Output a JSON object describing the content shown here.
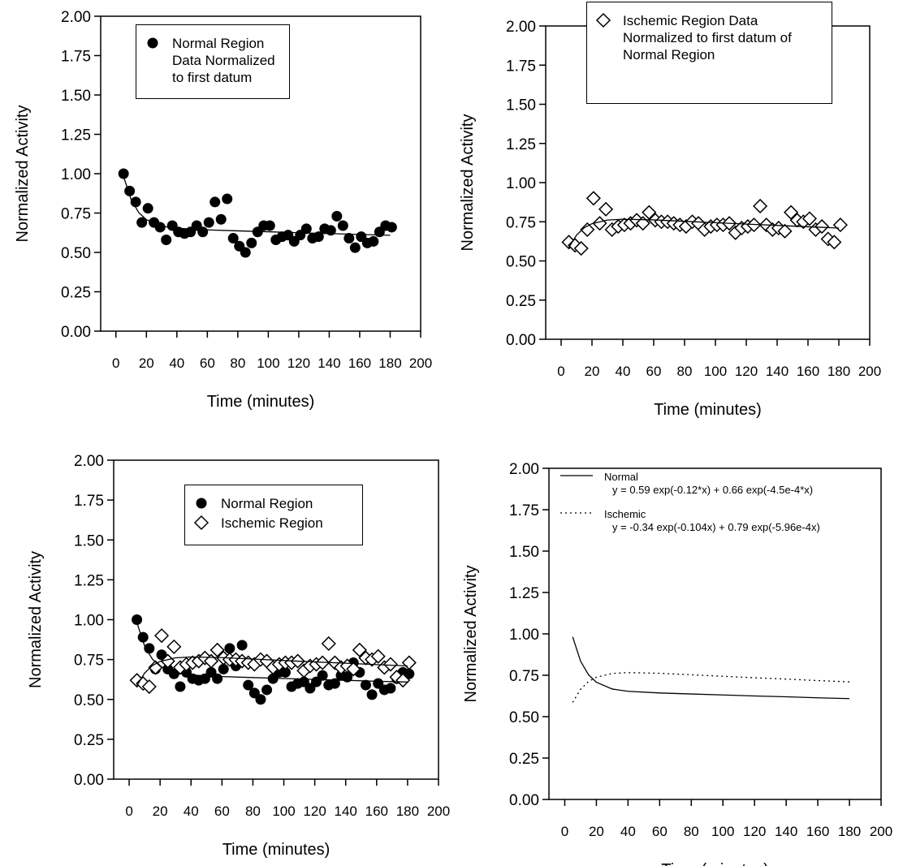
{
  "chart_data": [
    {
      "type": "scatter",
      "x_label": "Time (minutes)",
      "y_label": "Normalized Activity",
      "xlim": [
        -10,
        200
      ],
      "ylim": [
        0,
        2
      ],
      "xticks": [
        0,
        20,
        40,
        60,
        80,
        100,
        120,
        140,
        160,
        180,
        200
      ],
      "yticks": [
        {
          "value": 0,
          "label": "0.00"
        },
        {
          "value": 0.25,
          "label": "0.25"
        },
        {
          "value": 0.5,
          "label": "0.50"
        },
        {
          "value": 0.75,
          "label": "0.75"
        },
        {
          "value": 1,
          "label": "1.00"
        },
        {
          "value": 1.25,
          "label": "1.25"
        },
        {
          "value": 1.5,
          "label": "1.50"
        },
        {
          "value": 1.75,
          "label": "1.75"
        },
        {
          "value": 2,
          "label": "2.00"
        }
      ],
      "legend_frame": true,
      "series": [
        {
          "name": "Normal Region Data Normalized to first datum",
          "mode": "markers",
          "marker": "circle",
          "color": "#000000",
          "x": [
            5,
            9,
            13,
            17,
            21,
            25,
            29,
            33,
            37,
            41,
            45,
            49,
            53,
            57,
            61,
            65,
            69,
            73,
            77,
            81,
            85,
            89,
            93,
            97,
            101,
            105,
            109,
            113,
            117,
            121,
            125,
            129,
            133,
            137,
            141,
            145,
            149,
            153,
            157,
            161,
            165,
            169,
            173,
            177,
            181
          ],
          "values": [
            1.0,
            0.89,
            0.82,
            0.69,
            0.78,
            0.69,
            0.66,
            0.58,
            0.67,
            0.63,
            0.62,
            0.63,
            0.67,
            0.63,
            0.69,
            0.82,
            0.71,
            0.84,
            0.59,
            0.54,
            0.5,
            0.56,
            0.63,
            0.67,
            0.67,
            0.58,
            0.6,
            0.61,
            0.57,
            0.61,
            0.65,
            0.59,
            0.6,
            0.65,
            0.64,
            0.73,
            0.67,
            0.59,
            0.53,
            0.6,
            0.56,
            0.57,
            0.63,
            0.67,
            0.66
          ]
        },
        {
          "mode": "line",
          "dash": "solid",
          "color": "#000000",
          "x": [
            5,
            10,
            15,
            20,
            30,
            40,
            60,
            80,
            100,
            120,
            140,
            160,
            180
          ],
          "values": [
            0.982,
            0.835,
            0.753,
            0.708,
            0.667,
            0.653,
            0.643,
            0.637,
            0.631,
            0.625,
            0.62,
            0.614,
            0.609
          ]
        }
      ]
    },
    {
      "type": "scatter",
      "x_label": "Time (minutes)",
      "y_label": "Normalized Activity",
      "xlim": [
        -10,
        200
      ],
      "ylim": [
        0,
        2
      ],
      "xticks": [
        0,
        20,
        40,
        60,
        80,
        100,
        120,
        140,
        160,
        180,
        200
      ],
      "yticks": [
        {
          "value": 0,
          "label": "0.00"
        },
        {
          "value": 0.25,
          "label": "0.25"
        },
        {
          "value": 0.5,
          "label": "0.50"
        },
        {
          "value": 0.75,
          "label": "0.75"
        },
        {
          "value": 1,
          "label": "1.00"
        },
        {
          "value": 1.25,
          "label": "1.25"
        },
        {
          "value": 1.5,
          "label": "1.50"
        },
        {
          "value": 1.75,
          "label": "1.75"
        },
        {
          "value": 2,
          "label": "2.00"
        }
      ],
      "legend_frame": true,
      "series": [
        {
          "name": "Ischemic Region Data Normalized to first datum of Normal Region",
          "mode": "markers",
          "marker": "diamond",
          "color": "#000000",
          "x": [
            5,
            9,
            13,
            17,
            21,
            25,
            29,
            33,
            37,
            41,
            45,
            49,
            53,
            57,
            61,
            65,
            69,
            73,
            77,
            81,
            85,
            89,
            93,
            97,
            101,
            105,
            109,
            113,
            117,
            121,
            125,
            129,
            133,
            137,
            141,
            145,
            149,
            153,
            157,
            161,
            165,
            169,
            173,
            177,
            181
          ],
          "values": [
            0.62,
            0.6,
            0.58,
            0.7,
            0.9,
            0.74,
            0.83,
            0.7,
            0.72,
            0.73,
            0.74,
            0.76,
            0.74,
            0.81,
            0.76,
            0.75,
            0.75,
            0.74,
            0.73,
            0.72,
            0.75,
            0.74,
            0.7,
            0.72,
            0.73,
            0.73,
            0.74,
            0.68,
            0.71,
            0.72,
            0.73,
            0.85,
            0.73,
            0.7,
            0.71,
            0.69,
            0.81,
            0.76,
            0.75,
            0.77,
            0.7,
            0.72,
            0.64,
            0.62,
            0.73
          ]
        },
        {
          "mode": "line",
          "dash": "solid",
          "color": "#000000",
          "x": [
            5,
            10,
            15,
            20,
            30,
            40,
            60,
            80,
            100,
            120,
            140,
            160,
            180
          ],
          "values": [
            0.586,
            0.665,
            0.712,
            0.738,
            0.761,
            0.766,
            0.762,
            0.753,
            0.744,
            0.735,
            0.727,
            0.718,
            0.71
          ]
        }
      ]
    },
    {
      "type": "scatter",
      "x_label": "Time (minutes)",
      "y_label": "Normalized Activity",
      "xlim": [
        -10,
        200
      ],
      "ylim": [
        0,
        2
      ],
      "xticks": [
        0,
        20,
        40,
        60,
        80,
        100,
        120,
        140,
        160,
        180,
        200
      ],
      "yticks": [
        {
          "value": 0,
          "label": "0.00"
        },
        {
          "value": 0.25,
          "label": "0.25"
        },
        {
          "value": 0.5,
          "label": "0.50"
        },
        {
          "value": 0.75,
          "label": "0.75"
        },
        {
          "value": 1,
          "label": "1.00"
        },
        {
          "value": 1.25,
          "label": "1.25"
        },
        {
          "value": 1.5,
          "label": "1.50"
        },
        {
          "value": 1.75,
          "label": "1.75"
        },
        {
          "value": 2,
          "label": "2.00"
        }
      ],
      "legend_frame": true,
      "series": [
        {
          "name": "Normal Region",
          "mode": "markers",
          "marker": "circle",
          "color": "#000000",
          "x": [
            5,
            9,
            13,
            17,
            21,
            25,
            29,
            33,
            37,
            41,
            45,
            49,
            53,
            57,
            61,
            65,
            69,
            73,
            77,
            81,
            85,
            89,
            93,
            97,
            101,
            105,
            109,
            113,
            117,
            121,
            125,
            129,
            133,
            137,
            141,
            145,
            149,
            153,
            157,
            161,
            165,
            169,
            173,
            177,
            181
          ],
          "values": [
            1.0,
            0.89,
            0.82,
            0.69,
            0.78,
            0.69,
            0.66,
            0.58,
            0.67,
            0.63,
            0.62,
            0.63,
            0.67,
            0.63,
            0.69,
            0.82,
            0.71,
            0.84,
            0.59,
            0.54,
            0.5,
            0.56,
            0.63,
            0.67,
            0.67,
            0.58,
            0.6,
            0.61,
            0.57,
            0.61,
            0.65,
            0.59,
            0.6,
            0.65,
            0.64,
            0.73,
            0.67,
            0.59,
            0.53,
            0.6,
            0.56,
            0.57,
            0.63,
            0.67,
            0.66
          ]
        },
        {
          "name": "Ischemic Region",
          "mode": "markers",
          "marker": "diamond",
          "color": "#000000",
          "x": [
            5,
            9,
            13,
            17,
            21,
            25,
            29,
            33,
            37,
            41,
            45,
            49,
            53,
            57,
            61,
            65,
            69,
            73,
            77,
            81,
            85,
            89,
            93,
            97,
            101,
            105,
            109,
            113,
            117,
            121,
            125,
            129,
            133,
            137,
            141,
            145,
            149,
            153,
            157,
            161,
            165,
            169,
            173,
            177,
            181
          ],
          "values": [
            0.62,
            0.6,
            0.58,
            0.7,
            0.9,
            0.74,
            0.83,
            0.7,
            0.72,
            0.73,
            0.74,
            0.76,
            0.74,
            0.81,
            0.76,
            0.75,
            0.75,
            0.74,
            0.73,
            0.72,
            0.75,
            0.74,
            0.7,
            0.72,
            0.73,
            0.73,
            0.74,
            0.68,
            0.71,
            0.72,
            0.73,
            0.85,
            0.73,
            0.7,
            0.71,
            0.69,
            0.81,
            0.76,
            0.75,
            0.77,
            0.7,
            0.72,
            0.64,
            0.62,
            0.73
          ]
        },
        {
          "mode": "line",
          "dash": "solid",
          "color": "#000000",
          "x": [
            5,
            10,
            15,
            20,
            30,
            40,
            60,
            80,
            100,
            120,
            140,
            160,
            180
          ],
          "values": [
            0.982,
            0.835,
            0.753,
            0.708,
            0.667,
            0.653,
            0.643,
            0.637,
            0.631,
            0.625,
            0.62,
            0.614,
            0.609
          ]
        },
        {
          "mode": "line",
          "dash": "solid",
          "color": "#000000",
          "x": [
            5,
            10,
            15,
            20,
            30,
            40,
            60,
            80,
            100,
            120,
            140,
            160,
            180
          ],
          "values": [
            0.586,
            0.665,
            0.712,
            0.738,
            0.761,
            0.766,
            0.762,
            0.753,
            0.744,
            0.735,
            0.727,
            0.718,
            0.71
          ]
        }
      ]
    },
    {
      "type": "line",
      "x_label": "Time (minutes)",
      "y_label": "Normalized Activity",
      "xlim": [
        -10,
        200
      ],
      "ylim": [
        0,
        2
      ],
      "xticks": [
        0,
        20,
        40,
        60,
        80,
        100,
        120,
        140,
        160,
        180,
        200
      ],
      "yticks": [
        {
          "value": 0,
          "label": "0.00"
        },
        {
          "value": 0.25,
          "label": "0.25"
        },
        {
          "value": 0.5,
          "label": "0.50"
        },
        {
          "value": 0.75,
          "label": "0.75"
        },
        {
          "value": 1,
          "label": "1.00"
        },
        {
          "value": 1.25,
          "label": "1.25"
        },
        {
          "value": 1.5,
          "label": "1.50"
        },
        {
          "value": 1.75,
          "label": "1.75"
        },
        {
          "value": 2,
          "label": "2.00"
        }
      ],
      "legend_frame": false,
      "series": [
        {
          "name": "Normal",
          "equation": "y = 0.59 exp(-0.12*x) + 0.66 exp(-4.5e-4*x)",
          "mode": "line",
          "dash": "solid",
          "color": "#000000",
          "x": [
            5,
            10,
            15,
            20,
            30,
            40,
            60,
            80,
            100,
            120,
            140,
            160,
            180
          ],
          "values": [
            0.982,
            0.835,
            0.753,
            0.708,
            0.667,
            0.653,
            0.643,
            0.637,
            0.631,
            0.625,
            0.62,
            0.614,
            0.609
          ]
        },
        {
          "name": "Ischemic",
          "equation": "y = -0.34 exp(-0.104x) + 0.79 exp(-5.96e-4x)",
          "mode": "line",
          "dash": "dotted",
          "color": "#000000",
          "x": [
            5,
            10,
            15,
            20,
            30,
            40,
            60,
            80,
            100,
            120,
            140,
            160,
            180
          ],
          "values": [
            0.586,
            0.665,
            0.712,
            0.738,
            0.761,
            0.766,
            0.762,
            0.753,
            0.744,
            0.735,
            0.727,
            0.718,
            0.71
          ]
        }
      ]
    }
  ]
}
